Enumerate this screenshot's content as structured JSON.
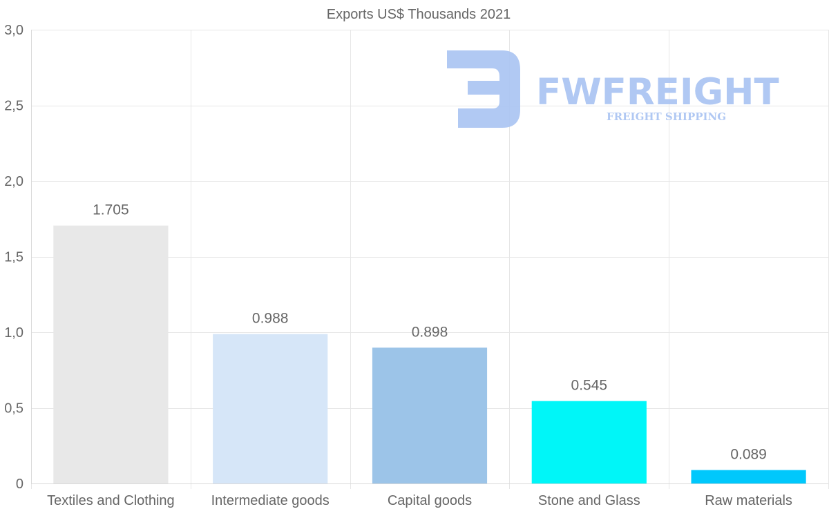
{
  "chart_data": {
    "type": "bar",
    "title": "Exports US$ Thousands 2021",
    "categories": [
      "Textiles and Clothing",
      "Intermediate goods",
      "Capital goods",
      "Stone and Glass",
      "Raw materials"
    ],
    "values": [
      1.705,
      0.988,
      0.898,
      0.545,
      0.089
    ],
    "data_labels": [
      "1.705",
      "0.988",
      "0.898",
      "0.545",
      "0.089"
    ],
    "colors": [
      "#e8e8e8",
      "#d6e6f8",
      "#9cc4e8",
      "#00f6f8",
      "#00c8fc"
    ],
    "y_ticks": [
      0,
      0.5,
      1.0,
      1.5,
      2.0,
      2.5,
      3.0
    ],
    "y_tick_labels": [
      "0",
      "0,5",
      "1,0",
      "1,5",
      "2,0",
      "2,5",
      "3,0"
    ],
    "xlabel": "",
    "ylabel": "",
    "ylim": [
      0,
      3.0
    ],
    "grid": true,
    "legend": "none"
  },
  "watermark": {
    "name": "FWFREIGHT",
    "tagline": "FREIGHT SHIPPING",
    "color": "#aac4f2"
  }
}
